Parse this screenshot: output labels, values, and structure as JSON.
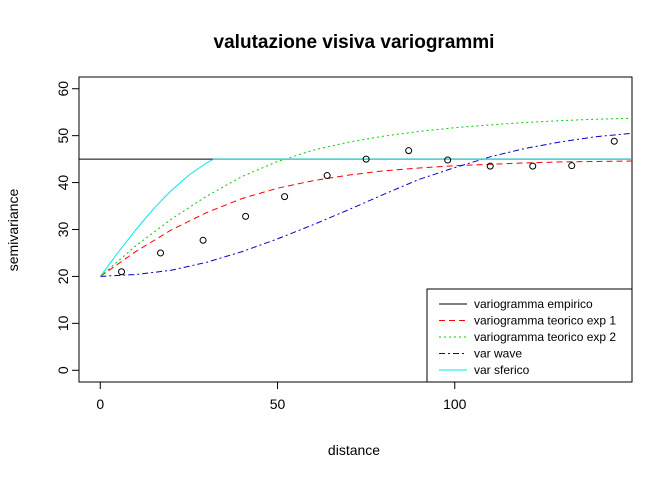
{
  "chart_data": {
    "type": "line",
    "title": "valutazione visiva variogrammi",
    "xlabel": "distance",
    "ylabel": "semivariance",
    "xlim": [
      -6,
      150
    ],
    "ylim": [
      -2.5,
      62.5
    ],
    "x_ticks": [
      0,
      50,
      100
    ],
    "y_ticks": [
      0,
      10,
      20,
      30,
      40,
      50,
      60
    ],
    "legend_position": "bottom-right",
    "grid": false,
    "empirical_points": {
      "x": [
        6,
        17,
        29,
        41,
        52,
        64,
        75,
        87,
        98,
        110,
        122,
        133,
        145
      ],
      "y": [
        21,
        25,
        27.7,
        32.8,
        37,
        41.5,
        45,
        46.8,
        44.8,
        43.5,
        43.5,
        43.6,
        48.8
      ]
    },
    "series": [
      {
        "name": "variogramma empirico",
        "color": "#000000",
        "dash": "solid",
        "x": [
          -6,
          150
        ],
        "y": [
          45,
          45
        ]
      },
      {
        "name": "variogramma teorico exp 1",
        "color": "#ff0000",
        "dash": "dashed",
        "x": [
          0,
          10,
          20,
          30,
          40,
          50,
          60,
          70,
          80,
          90,
          100,
          110,
          120,
          130,
          140,
          150
        ],
        "y": [
          20,
          25.3,
          29.9,
          33.6,
          36.6,
          38.8,
          40.4,
          41.6,
          42.5,
          43.1,
          43.6,
          43.9,
          44.2,
          44.4,
          44.5,
          44.6
        ]
      },
      {
        "name": "variogramma teorico exp 2",
        "color": "#00cc00",
        "dash": "dotted",
        "x": [
          0,
          10,
          20,
          30,
          40,
          50,
          60,
          70,
          80,
          90,
          100,
          110,
          120,
          130,
          140,
          150
        ],
        "y": [
          20,
          26.5,
          32.2,
          37.1,
          41.3,
          44.5,
          46.9,
          48.6,
          49.9,
          50.9,
          51.7,
          52.3,
          52.8,
          53.2,
          53.5,
          53.7
        ]
      },
      {
        "name": "var wave",
        "color": "#0000cc",
        "dash": "dashdot",
        "x": [
          0,
          10,
          20,
          30,
          40,
          50,
          60,
          70,
          80,
          90,
          100,
          110,
          120,
          130,
          140,
          150
        ],
        "y": [
          20,
          20.4,
          21.3,
          23,
          25.3,
          28,
          31,
          34.2,
          37.5,
          40.7,
          43.2,
          45.5,
          47.3,
          48.7,
          49.8,
          50.5
        ]
      },
      {
        "name": "var sferico",
        "color": "#00e5ee",
        "dash": "solid",
        "x": [
          0,
          5,
          10,
          15,
          20,
          25,
          30,
          32,
          150
        ],
        "y": [
          20,
          25.1,
          29.9,
          34.4,
          38.3,
          41.6,
          44.2,
          45,
          45
        ]
      }
    ]
  }
}
